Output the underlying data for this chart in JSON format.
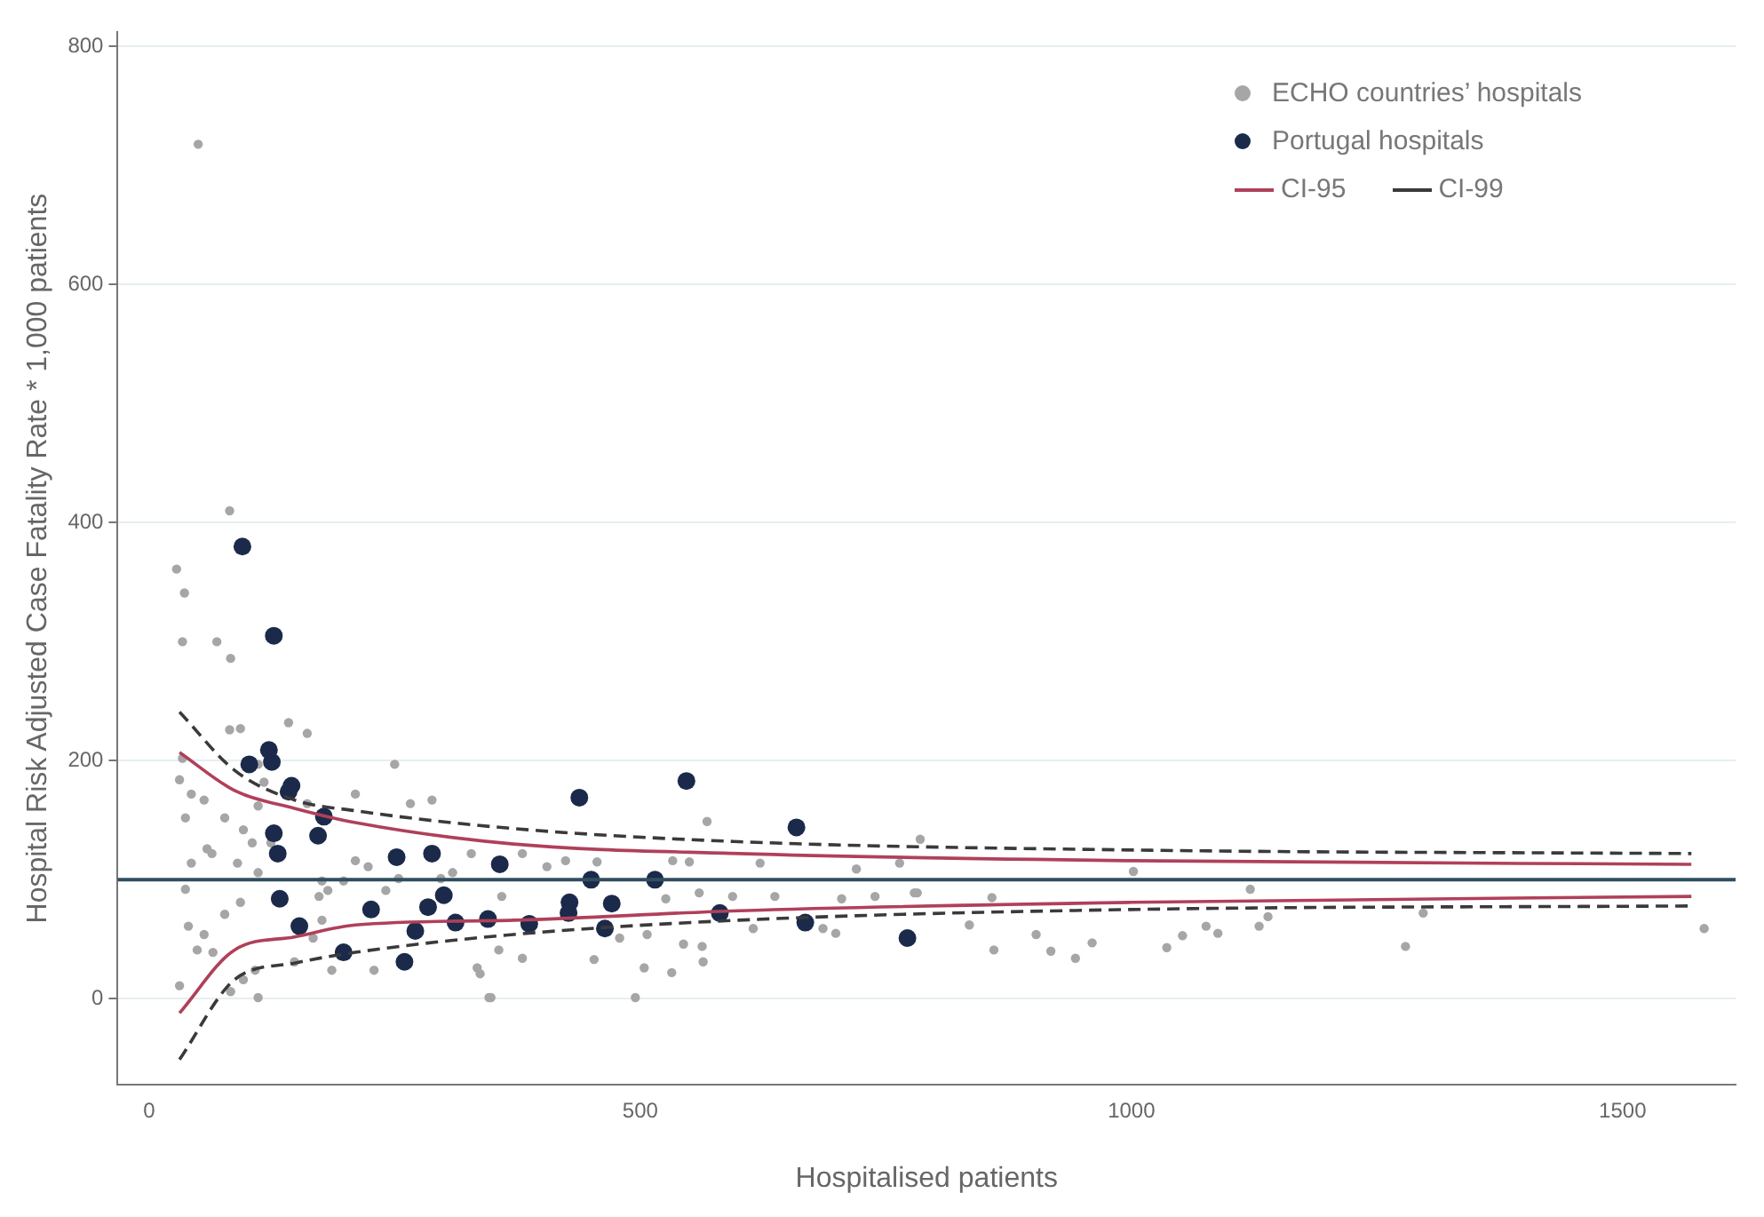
{
  "chart_data": {
    "type": "scatter",
    "xlabel": "Hospitalised patients",
    "ylabel": "Hospital Risk Adjusted Case Fatality Rate * 1,000 patients",
    "xlim": [
      -32,
      1615
    ],
    "ylim": [
      -72,
      812
    ],
    "xticks": [
      0,
      500,
      1000,
      1500
    ],
    "yticks": [
      0,
      200,
      400,
      600,
      800
    ],
    "grid": "y",
    "legend": "top right",
    "ref_lines": [
      {
        "axis": "y",
        "value": 100,
        "color": "#2f4f5f"
      }
    ],
    "series": [
      {
        "name": "ECHO countries’ hospitals",
        "marker": "circle",
        "color": "#a6a6a6",
        "x": [
          50,
          82,
          28,
          36,
          34,
          69,
          83,
          250,
          161,
          142,
          93,
          82,
          31,
          37,
          43,
          59,
          64,
          77,
          111,
          124,
          37,
          77,
          93,
          40,
          56,
          49,
          65,
          31,
          111,
          83,
          96,
          108,
          148,
          167,
          176,
          210,
          266,
          288,
          210,
          223,
          198,
          241,
          176,
          173,
          182,
          254,
          309,
          328,
          334,
          346,
          229,
          186,
          297,
          111,
          90,
          96,
          105,
          117,
          161,
          111,
          43,
          56,
          34,
          568,
          424,
          456,
          533,
          550,
          622,
          720,
          785,
          764,
          380,
          526,
          560,
          594,
          637,
          705,
          739,
          782,
          479,
          507,
          544,
          563,
          615,
          686,
          699,
          380,
          453,
          504,
          532,
          564,
          348,
          495,
          337,
          356,
          359,
          405,
          1002,
          1121,
          858,
          835,
          860,
          903,
          918,
          943,
          960,
          1036,
          1052,
          1076,
          1088,
          1130,
          1139,
          1279,
          1297,
          1583,
          779
        ],
        "values": [
          718,
          410,
          361,
          341,
          300,
          300,
          286,
          197,
          223,
          232,
          227,
          226,
          184,
          152,
          114,
          126,
          122,
          152,
          162,
          131,
          92,
          71,
          81,
          61,
          54,
          41,
          39,
          11,
          1,
          6,
          16,
          24,
          31,
          51,
          66,
          172,
          164,
          167,
          116,
          111,
          99,
          91,
          99,
          86,
          91,
          101,
          106,
          122,
          26,
          1,
          24,
          24,
          101,
          106,
          114,
          142,
          131,
          182,
          164,
          197,
          172,
          167,
          202,
          149,
          116,
          115,
          116,
          115,
          114,
          109,
          134,
          114,
          122,
          84,
          89,
          86,
          86,
          84,
          86,
          89,
          51,
          54,
          46,
          44,
          59,
          59,
          55,
          34,
          33,
          26,
          22,
          31,
          1,
          1,
          21,
          41,
          86,
          111,
          107,
          92,
          85,
          62,
          41,
          54,
          40,
          34,
          47,
          43,
          53,
          61,
          55,
          61,
          69,
          44,
          72,
          59,
          89
        ]
      },
      {
        "name": "Portugal hospitals",
        "marker": "circle",
        "color": "#1b2a4a",
        "x": [
          95,
          127,
          122,
          125,
          102,
          145,
          142,
          178,
          172,
          127,
          131,
          252,
          288,
          357,
          133,
          226,
          300,
          284,
          153,
          271,
          312,
          345,
          198,
          260,
          438,
          547,
          659,
          450,
          515,
          387,
          428,
          427,
          471,
          464,
          581,
          668,
          772
        ],
        "values": [
          380,
          305,
          209,
          199,
          197,
          179,
          174,
          153,
          137,
          139,
          122,
          119,
          122,
          113,
          84,
          75,
          87,
          77,
          61,
          57,
          64,
          67,
          39,
          31,
          169,
          183,
          144,
          100,
          100,
          63,
          81,
          72,
          80,
          59,
          72,
          64,
          51
        ]
      },
      {
        "name": "CI-95",
        "type": "line",
        "line_style": "solid",
        "color": "#b0405a",
        "x": [
          31,
          87,
          148,
          210,
          371,
          600,
          1000,
          1570
        ],
        "values": [
          207,
          175,
          160,
          148,
          130,
          122,
          116,
          113
        ]
      },
      {
        "type": "line",
        "line_style": "solid",
        "color": "#b0405a",
        "x": [
          31,
          87,
          148,
          210,
          371,
          600,
          1000,
          1570
        ],
        "values": [
          -12,
          41,
          52,
          62,
          66,
          74,
          81,
          86
        ]
      },
      {
        "name": "CI-99",
        "type": "line",
        "line_style": "dashed",
        "color": "#3a3a3a",
        "x": [
          31,
          87,
          148,
          210,
          371,
          600,
          1000,
          1570
        ],
        "values": [
          241,
          192,
          167,
          158,
          143,
          132,
          125,
          122
        ]
      },
      {
        "type": "line",
        "line_style": "dashed",
        "color": "#3a3a3a",
        "x": [
          31,
          87,
          148,
          210,
          371,
          600,
          1000,
          1570
        ],
        "values": [
          -51,
          16,
          30,
          39,
          54,
          66,
          75,
          78
        ]
      }
    ]
  }
}
